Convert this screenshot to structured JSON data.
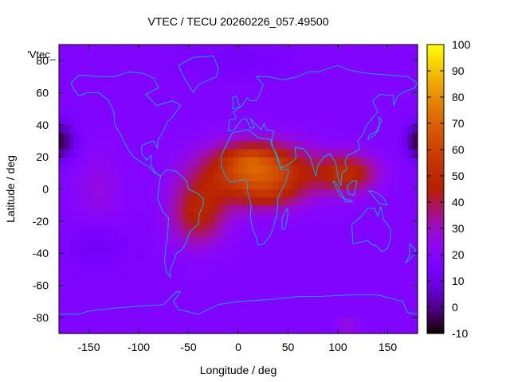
{
  "chart_data": {
    "type": "heatmap",
    "title": "VTEC / TECU 20260226_057.49500",
    "xlabel": "Longitude / deg",
    "ylabel": "Latitude / deg",
    "key_label": "'Vtec_",
    "xlim": [
      -180,
      180
    ],
    "ylim": [
      -90,
      90
    ],
    "x_ticks": [
      -150,
      -100,
      -50,
      0,
      50,
      100,
      150
    ],
    "y_ticks": [
      -80,
      -60,
      -40,
      -20,
      0,
      20,
      40,
      60,
      80
    ],
    "colorbar": {
      "range": [
        -10,
        100
      ],
      "ticks": [
        -10,
        0,
        10,
        20,
        30,
        40,
        50,
        60,
        70,
        80,
        90,
        100
      ],
      "palette": "gnuplot-rgbformulae-7-5-15"
    },
    "field": {
      "background_value": 18,
      "features": [
        {
          "name": "equatorial-anomaly-core",
          "lon": 20,
          "lat": 10,
          "lon_width": 55,
          "lat_width": 18,
          "amplitude": 50
        },
        {
          "name": "anomaly-east-extension",
          "lon": 110,
          "lat": 10,
          "lon_width": 30,
          "lat_width": 12,
          "amplitude": 30
        },
        {
          "name": "south-atlantic-extension",
          "lon": -40,
          "lat": -15,
          "lon_width": 28,
          "lat_width": 20,
          "amplitude": 28
        },
        {
          "name": "north-africa-crest",
          "lon": 10,
          "lat": 20,
          "lon_width": 25,
          "lat_width": 8,
          "amplitude": 12
        },
        {
          "name": "south-crest",
          "lon": 30,
          "lat": -5,
          "lon_width": 30,
          "lat_width": 8,
          "amplitude": 8
        },
        {
          "name": "pacific-enhancement",
          "lon": -140,
          "lat": 0,
          "lon_width": 25,
          "lat_width": 25,
          "amplitude": 8
        },
        {
          "name": "night-trough-west",
          "lon": -175,
          "lat": 30,
          "lon_width": 15,
          "lat_width": 12,
          "amplitude": -14
        },
        {
          "name": "night-trough-east",
          "lon": 178,
          "lat": 30,
          "lon_width": 10,
          "lat_width": 10,
          "amplitude": -12
        },
        {
          "name": "south-pacific-low",
          "lon": -140,
          "lat": -35,
          "lon_width": 30,
          "lat_width": 15,
          "amplitude": -6
        },
        {
          "name": "arctic-low",
          "lon": 0,
          "lat": 80,
          "lon_width": 60,
          "lat_width": 10,
          "amplitude": -4
        },
        {
          "name": "antarctic-patch",
          "lon": 110,
          "lat": -85,
          "lon_width": 12,
          "lat_width": 4,
          "amplitude": 12
        }
      ]
    },
    "coastlines": [
      {
        "name": "north-america",
        "points": [
          [
            -168,
            66
          ],
          [
            -160,
            71
          ],
          [
            -140,
            70
          ],
          [
            -125,
            70
          ],
          [
            -110,
            73
          ],
          [
            -95,
            72
          ],
          [
            -85,
            69
          ],
          [
            -80,
            63
          ],
          [
            -93,
            59
          ],
          [
            -82,
            52
          ],
          [
            -66,
            55
          ],
          [
            -58,
            52
          ],
          [
            -66,
            45
          ],
          [
            -71,
            42
          ],
          [
            -76,
            35
          ],
          [
            -81,
            30
          ],
          [
            -81,
            25
          ],
          [
            -85,
            30
          ],
          [
            -90,
            29
          ],
          [
            -97,
            27
          ],
          [
            -97,
            22
          ],
          [
            -92,
            18
          ],
          [
            -87,
            21
          ],
          [
            -88,
            15
          ],
          [
            -83,
            10
          ],
          [
            -78,
            8
          ],
          [
            -84,
            10
          ],
          [
            -90,
            14
          ],
          [
            -96,
            16
          ],
          [
            -105,
            20
          ],
          [
            -110,
            24
          ],
          [
            -115,
            30
          ],
          [
            -118,
            34
          ],
          [
            -124,
            40
          ],
          [
            -125,
            48
          ],
          [
            -130,
            55
          ],
          [
            -140,
            60
          ],
          [
            -152,
            60
          ],
          [
            -160,
            58
          ],
          [
            -165,
            62
          ],
          [
            -168,
            66
          ]
        ]
      },
      {
        "name": "greenland",
        "points": [
          [
            -60,
            77
          ],
          [
            -45,
            82
          ],
          [
            -25,
            83
          ],
          [
            -20,
            75
          ],
          [
            -22,
            70
          ],
          [
            -40,
            65
          ],
          [
            -45,
            60
          ],
          [
            -50,
            65
          ],
          [
            -55,
            70
          ],
          [
            -60,
            77
          ]
        ]
      },
      {
        "name": "south-america",
        "points": [
          [
            -78,
            8
          ],
          [
            -72,
            12
          ],
          [
            -62,
            11
          ],
          [
            -52,
            5
          ],
          [
            -50,
            0
          ],
          [
            -40,
            -3
          ],
          [
            -35,
            -6
          ],
          [
            -35,
            -10
          ],
          [
            -39,
            -15
          ],
          [
            -40,
            -22
          ],
          [
            -48,
            -26
          ],
          [
            -53,
            -34
          ],
          [
            -57,
            -38
          ],
          [
            -62,
            -40
          ],
          [
            -65,
            -45
          ],
          [
            -67,
            -48
          ],
          [
            -69,
            -52
          ],
          [
            -68,
            -55
          ],
          [
            -72,
            -52
          ],
          [
            -74,
            -45
          ],
          [
            -73,
            -37
          ],
          [
            -71,
            -30
          ],
          [
            -70,
            -18
          ],
          [
            -76,
            -14
          ],
          [
            -81,
            -6
          ],
          [
            -80,
            0
          ],
          [
            -78,
            8
          ]
        ]
      },
      {
        "name": "africa",
        "points": [
          [
            -17,
            21
          ],
          [
            -10,
            30
          ],
          [
            -6,
            35
          ],
          [
            10,
            37
          ],
          [
            20,
            32
          ],
          [
            32,
            31
          ],
          [
            34,
            28
          ],
          [
            43,
            12
          ],
          [
            51,
            12
          ],
          [
            48,
            5
          ],
          [
            40,
            -5
          ],
          [
            39,
            -15
          ],
          [
            35,
            -24
          ],
          [
            32,
            -29
          ],
          [
            26,
            -34
          ],
          [
            20,
            -35
          ],
          [
            18,
            -30
          ],
          [
            15,
            -26
          ],
          [
            12,
            -18
          ],
          [
            13,
            -10
          ],
          [
            9,
            -1
          ],
          [
            9,
            4
          ],
          [
            5,
            6
          ],
          [
            0,
            5
          ],
          [
            -8,
            4
          ],
          [
            -13,
            8
          ],
          [
            -17,
            14
          ],
          [
            -17,
            21
          ]
        ]
      },
      {
        "name": "eurasia",
        "points": [
          [
            -10,
            36
          ],
          [
            -9,
            43
          ],
          [
            -2,
            44
          ],
          [
            -5,
            48
          ],
          [
            2,
            51
          ],
          [
            5,
            53
          ],
          [
            9,
            57
          ],
          [
            12,
            55
          ],
          [
            18,
            55
          ],
          [
            22,
            60
          ],
          [
            25,
            65
          ],
          [
            18,
            70
          ],
          [
            30,
            70
          ],
          [
            45,
            68
          ],
          [
            60,
            70
          ],
          [
            70,
            73
          ],
          [
            80,
            73
          ],
          [
            100,
            77
          ],
          [
            112,
            74
          ],
          [
            130,
            72
          ],
          [
            150,
            71
          ],
          [
            170,
            70
          ],
          [
            180,
            66
          ],
          [
            177,
            63
          ],
          [
            165,
            60
          ],
          [
            160,
            58
          ],
          [
            156,
            52
          ],
          [
            156,
            58
          ],
          [
            142,
            59
          ],
          [
            135,
            55
          ],
          [
            140,
            48
          ],
          [
            133,
            43
          ],
          [
            128,
            39
          ],
          [
            126,
            35
          ],
          [
            120,
            30
          ],
          [
            122,
            25
          ],
          [
            117,
            23
          ],
          [
            110,
            21
          ],
          [
            107,
            17
          ],
          [
            109,
            12
          ],
          [
            104,
            10
          ],
          [
            103,
            2
          ],
          [
            100,
            7
          ],
          [
            98,
            16
          ],
          [
            92,
            22
          ],
          [
            86,
            20
          ],
          [
            80,
            15
          ],
          [
            78,
            8
          ],
          [
            72,
            20
          ],
          [
            66,
            25
          ],
          [
            57,
            26
          ],
          [
            58,
            20
          ],
          [
            55,
            17
          ],
          [
            43,
            13
          ],
          [
            39,
            21
          ],
          [
            33,
            28
          ],
          [
            34,
            32
          ],
          [
            36,
            36
          ],
          [
            28,
            37
          ],
          [
            26,
            41
          ],
          [
            23,
            37
          ],
          [
            18,
            40
          ],
          [
            12,
            44
          ],
          [
            16,
            38
          ],
          [
            12,
            38
          ],
          [
            8,
            44
          ],
          [
            3,
            43
          ],
          [
            -4,
            37
          ],
          [
            -10,
            36
          ]
        ]
      },
      {
        "name": "madagascar",
        "points": [
          [
            44,
            -25
          ],
          [
            47,
            -25
          ],
          [
            50,
            -15
          ],
          [
            49,
            -12
          ],
          [
            44,
            -18
          ],
          [
            44,
            -25
          ]
        ]
      },
      {
        "name": "sumatra",
        "points": [
          [
            95,
            5
          ],
          [
            98,
            4
          ],
          [
            104,
            -3
          ],
          [
            106,
            -6
          ],
          [
            102,
            -4
          ],
          [
            95,
            5
          ]
        ]
      },
      {
        "name": "java",
        "points": [
          [
            106,
            -6
          ],
          [
            112,
            -7
          ],
          [
            115,
            -8
          ],
          [
            108,
            -8
          ],
          [
            106,
            -6
          ]
        ]
      },
      {
        "name": "borneo",
        "points": [
          [
            109,
            2
          ],
          [
            115,
            5
          ],
          [
            119,
            5
          ],
          [
            118,
            1
          ],
          [
            116,
            -4
          ],
          [
            111,
            -3
          ],
          [
            109,
            2
          ]
        ]
      },
      {
        "name": "new-guinea",
        "points": [
          [
            131,
            -1
          ],
          [
            138,
            -2
          ],
          [
            145,
            -5
          ],
          [
            150,
            -10
          ],
          [
            142,
            -9
          ],
          [
            136,
            -5
          ],
          [
            131,
            -1
          ]
        ]
      },
      {
        "name": "japan",
        "points": [
          [
            130,
            31
          ],
          [
            132,
            34
          ],
          [
            136,
            35
          ],
          [
            140,
            36
          ],
          [
            142,
            40
          ],
          [
            141,
            45
          ],
          [
            144,
            43
          ],
          [
            140,
            38
          ],
          [
            138,
            34
          ],
          [
            131,
            31
          ],
          [
            130,
            31
          ]
        ]
      },
      {
        "name": "australia",
        "points": [
          [
            114,
            -22
          ],
          [
            122,
            -18
          ],
          [
            130,
            -12
          ],
          [
            137,
            -12
          ],
          [
            140,
            -17
          ],
          [
            143,
            -11
          ],
          [
            146,
            -19
          ],
          [
            153,
            -25
          ],
          [
            153,
            -30
          ],
          [
            150,
            -37
          ],
          [
            144,
            -39
          ],
          [
            138,
            -35
          ],
          [
            135,
            -35
          ],
          [
            130,
            -32
          ],
          [
            124,
            -33
          ],
          [
            115,
            -34
          ],
          [
            114,
            -22
          ]
        ]
      },
      {
        "name": "new-zealand",
        "points": [
          [
            172,
            -34
          ],
          [
            178,
            -38
          ],
          [
            176,
            -41
          ],
          [
            172,
            -44
          ],
          [
            168,
            -46
          ],
          [
            172,
            -41
          ],
          [
            172,
            -34
          ]
        ]
      },
      {
        "name": "british-isles",
        "points": [
          [
            -6,
            50
          ],
          [
            2,
            51
          ],
          [
            0,
            54
          ],
          [
            -2,
            58
          ],
          [
            -6,
            57
          ],
          [
            -5,
            53
          ],
          [
            -6,
            50
          ]
        ]
      },
      {
        "name": "antarctica",
        "points": [
          [
            -180,
            -78
          ],
          [
            -160,
            -78
          ],
          [
            -150,
            -76
          ],
          [
            -120,
            -74
          ],
          [
            -100,
            -73
          ],
          [
            -75,
            -72
          ],
          [
            -62,
            -64
          ],
          [
            -58,
            -64
          ],
          [
            -65,
            -70
          ],
          [
            -60,
            -75
          ],
          [
            -40,
            -78
          ],
          [
            -20,
            -72
          ],
          [
            0,
            -70
          ],
          [
            30,
            -69
          ],
          [
            60,
            -67
          ],
          [
            80,
            -67
          ],
          [
            110,
            -66
          ],
          [
            140,
            -66
          ],
          [
            165,
            -70
          ],
          [
            170,
            -77
          ],
          [
            180,
            -78
          ]
        ]
      }
    ]
  }
}
